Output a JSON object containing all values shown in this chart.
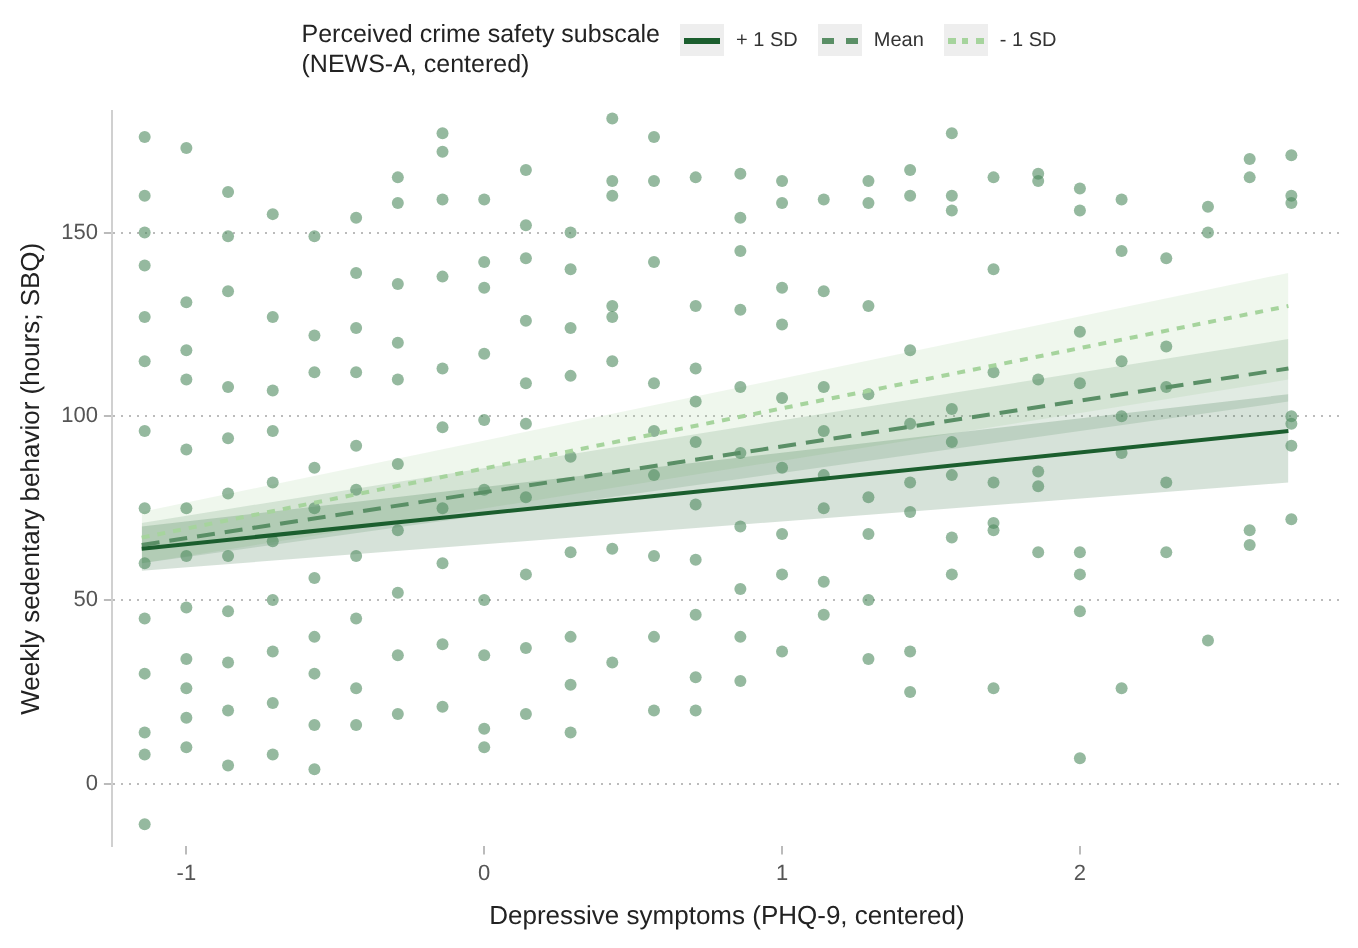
{
  "chart_data": {
    "type": "scatter",
    "xlabel": "Depressive symptoms (PHQ-9, centered)",
    "ylabel": "Weekly sedentary behavior (hours; SBQ)",
    "legend_title": "Perceived crime safety subscale\n(NEWS-A, centered)",
    "legend": "top",
    "grid": "y",
    "marker": "circle",
    "xlim": [
      -1.25,
      2.88
    ],
    "ylim": [
      -17,
      183
    ],
    "xticks": [
      -1,
      0,
      1,
      2
    ],
    "yticks": [
      0,
      50,
      100,
      150
    ],
    "series": [
      {
        "color": "#4f8a5f",
        "x": [
          -1.14,
          -1.14,
          -1.14,
          -1.14,
          -1.14,
          -1.14,
          -1.14,
          -1.14,
          -1.14,
          -1.14,
          -1.14,
          -1.14,
          -1.14,
          -1.14,
          -1,
          -1,
          -1,
          -1,
          -1,
          -1,
          -1,
          -1,
          -1,
          -1,
          -1,
          -1,
          -0.86,
          -0.86,
          -0.86,
          -0.86,
          -0.86,
          -0.86,
          -0.86,
          -0.86,
          -0.86,
          -0.86,
          -0.86,
          -0.71,
          -0.71,
          -0.71,
          -0.71,
          -0.71,
          -0.71,
          -0.71,
          -0.71,
          -0.71,
          -0.71,
          -0.57,
          -0.57,
          -0.57,
          -0.57,
          -0.57,
          -0.57,
          -0.57,
          -0.57,
          -0.57,
          -0.57,
          -0.43,
          -0.43,
          -0.43,
          -0.43,
          -0.43,
          -0.43,
          -0.43,
          -0.43,
          -0.43,
          -0.43,
          -0.29,
          -0.29,
          -0.29,
          -0.29,
          -0.29,
          -0.29,
          -0.29,
          -0.29,
          -0.29,
          -0.29,
          -0.14,
          -0.14,
          -0.14,
          -0.14,
          -0.14,
          -0.14,
          -0.14,
          -0.14,
          -0.14,
          -0.14,
          0,
          0,
          0,
          0,
          0,
          0,
          0,
          0,
          0,
          0,
          0.14,
          0.14,
          0.14,
          0.14,
          0.14,
          0.14,
          0.14,
          0.14,
          0.14,
          0.14,
          0.29,
          0.29,
          0.29,
          0.29,
          0.29,
          0.29,
          0.29,
          0.29,
          0.29,
          0.43,
          0.43,
          0.43,
          0.43,
          0.43,
          0.43,
          0.43,
          0.43,
          0.57,
          0.57,
          0.57,
          0.57,
          0.57,
          0.57,
          0.57,
          0.57,
          0.57,
          0.71,
          0.71,
          0.71,
          0.71,
          0.71,
          0.71,
          0.71,
          0.71,
          0.71,
          0.71,
          0.86,
          0.86,
          0.86,
          0.86,
          0.86,
          0.86,
          0.86,
          0.86,
          0.86,
          0.86,
          1,
          1,
          1,
          1,
          1,
          1,
          1,
          1,
          1,
          1.14,
          1.14,
          1.14,
          1.14,
          1.14,
          1.14,
          1.14,
          1.14,
          1.29,
          1.29,
          1.29,
          1.29,
          1.29,
          1.29,
          1.29,
          1.29,
          1.43,
          1.43,
          1.43,
          1.43,
          1.43,
          1.43,
          1.43,
          1.43,
          1.57,
          1.57,
          1.57,
          1.57,
          1.57,
          1.57,
          1.57,
          1.57,
          1.71,
          1.71,
          1.71,
          1.71,
          1.71,
          1.71,
          1.71,
          1.86,
          1.86,
          1.86,
          1.86,
          1.86,
          1.86,
          2,
          2,
          2,
          2,
          2,
          2,
          2,
          2,
          2.14,
          2.14,
          2.14,
          2.14,
          2.14,
          2.14,
          2.29,
          2.29,
          2.29,
          2.29,
          2.29,
          2.43,
          2.43,
          2.43,
          2.57,
          2.57,
          2.57,
          2.57,
          2.71,
          2.71,
          2.71,
          2.71,
          2.71,
          2.71,
          2.71
        ],
        "values": [
          176,
          160,
          150,
          141,
          127,
          115,
          96,
          75,
          60,
          45,
          30,
          14,
          8,
          -11,
          173,
          131,
          118,
          110,
          91,
          75,
          62,
          48,
          34,
          26,
          18,
          10,
          161,
          149,
          134,
          108,
          94,
          79,
          62,
          47,
          33,
          20,
          5,
          155,
          127,
          107,
          96,
          82,
          66,
          50,
          36,
          22,
          8,
          149,
          122,
          112,
          86,
          75,
          56,
          40,
          30,
          16,
          4,
          154,
          139,
          124,
          112,
          92,
          80,
          62,
          45,
          26,
          16,
          165,
          158,
          136,
          120,
          110,
          87,
          69,
          52,
          35,
          19,
          177,
          172,
          159,
          138,
          113,
          97,
          75,
          60,
          38,
          21,
          159,
          142,
          135,
          117,
          99,
          80,
          50,
          35,
          15,
          10,
          167,
          152,
          143,
          126,
          109,
          98,
          78,
          57,
          37,
          19,
          150,
          140,
          124,
          111,
          89,
          63,
          40,
          27,
          14,
          181,
          164,
          160,
          130,
          127,
          115,
          64,
          33,
          176,
          164,
          142,
          109,
          96,
          84,
          62,
          40,
          20,
          165,
          130,
          113,
          104,
          93,
          76,
          61,
          46,
          29,
          20,
          166,
          154,
          145,
          129,
          108,
          90,
          70,
          53,
          40,
          28,
          164,
          158,
          135,
          125,
          105,
          86,
          68,
          57,
          36,
          159,
          134,
          108,
          96,
          84,
          75,
          55,
          46,
          164,
          158,
          130,
          106,
          78,
          68,
          50,
          34,
          167,
          160,
          118,
          98,
          82,
          74,
          36,
          25,
          177,
          160,
          156,
          102,
          93,
          84,
          67,
          57,
          165,
          140,
          112,
          82,
          71,
          69,
          26,
          166,
          164,
          110,
          85,
          81,
          63,
          162,
          156,
          123,
          109,
          63,
          57,
          47,
          7,
          159,
          145,
          115,
          100,
          90,
          26,
          143,
          119,
          108,
          82,
          63,
          157,
          150,
          39,
          170,
          165,
          69,
          65,
          171,
          160,
          158,
          100,
          98,
          92,
          72
        ]
      },
      {
        "type": "line",
        "name": "+ 1 SD",
        "color": "#1b5e2e",
        "line_style": "solid",
        "marker": "none",
        "x": [
          -1.15,
          2.7
        ],
        "values": [
          64,
          96
        ],
        "lower": [
          58,
          82
        ],
        "upper": [
          70,
          106
        ]
      },
      {
        "type": "line",
        "name": "Mean",
        "color": "#5a8f66",
        "line_style": "dashed",
        "marker": "none",
        "x": [
          -1.15,
          2.7
        ],
        "values": [
          65,
          113
        ],
        "lower": [
          60,
          104
        ],
        "upper": [
          71,
          121
        ]
      },
      {
        "type": "line",
        "name": "- 1 SD",
        "color": "#a6d49d",
        "line_style": "dotted",
        "marker": "none",
        "x": [
          -1.15,
          2.7
        ],
        "values": [
          67,
          130
        ],
        "lower": [
          60,
          110
        ],
        "upper": [
          74,
          139
        ]
      }
    ]
  }
}
